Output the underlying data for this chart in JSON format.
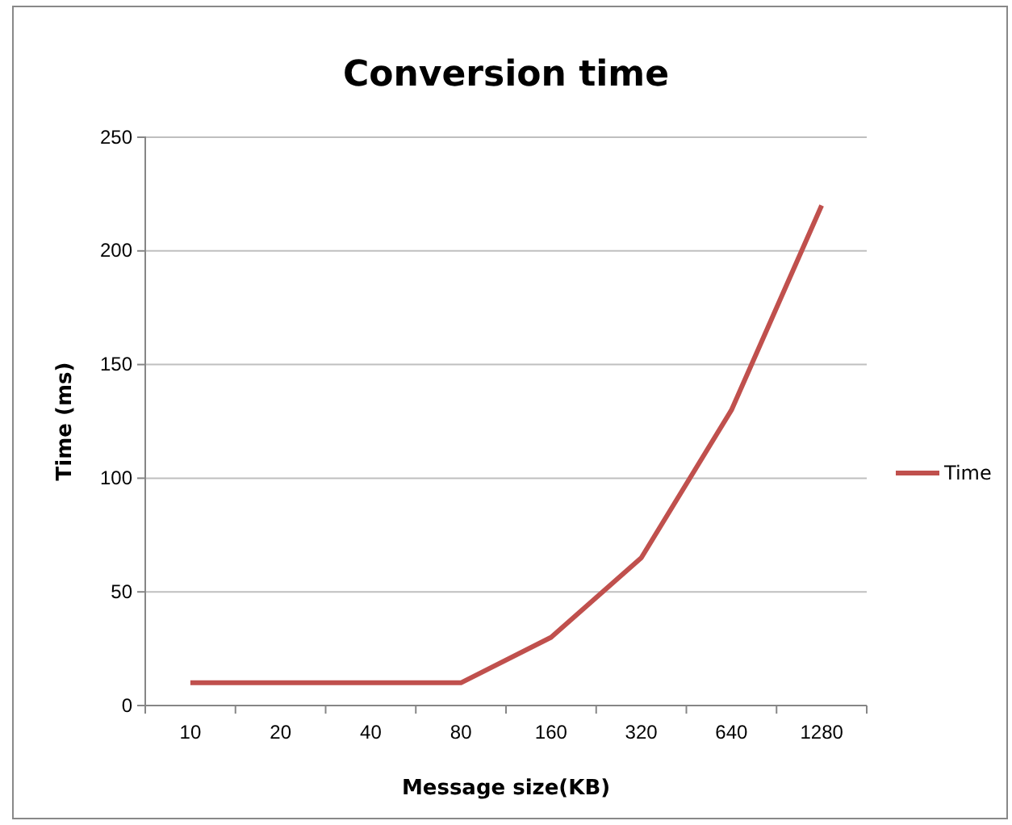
{
  "chart_data": {
    "type": "line",
    "title": "Conversion time",
    "xlabel": "Message size(KB)",
    "ylabel": "Time (ms)",
    "categories": [
      "10",
      "20",
      "40",
      "80",
      "160",
      "320",
      "640",
      "1280"
    ],
    "series": [
      {
        "name": "Time",
        "color": "#c0504d",
        "values": [
          10,
          10,
          10,
          10,
          30,
          65,
          130,
          220
        ]
      }
    ],
    "ylim": [
      0,
      250
    ],
    "yticks": [
      0,
      50,
      100,
      150,
      200,
      250
    ],
    "grid": "y",
    "legend": "right",
    "marker": "none",
    "line_style": "solid"
  }
}
